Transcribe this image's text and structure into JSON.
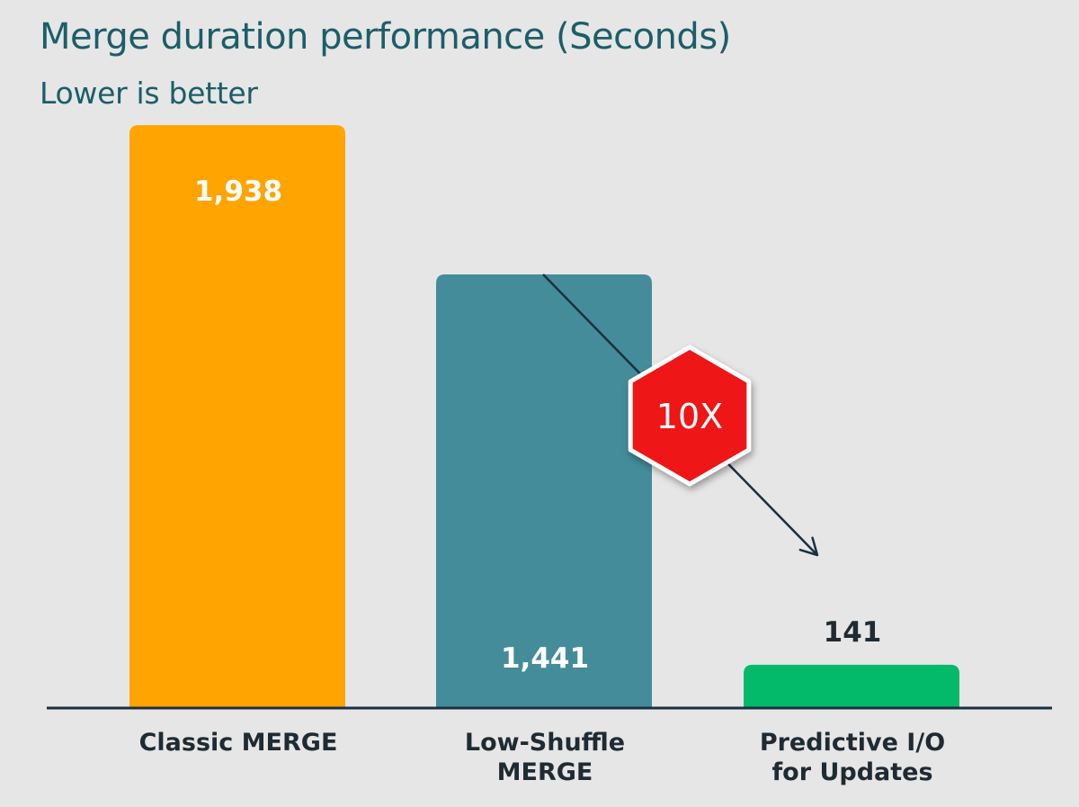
{
  "chart_data": {
    "type": "bar",
    "title": "Merge duration performance (Seconds)",
    "subtitle": "Lower is better",
    "categories": [
      [
        "Classic MERGE"
      ],
      [
        "Low-Shuffle",
        "MERGE"
      ],
      [
        "Predictive I/O",
        "for Updates"
      ]
    ],
    "values": [
      1938,
      1441,
      141
    ],
    "value_labels": [
      "1,938",
      "1,441",
      "141"
    ],
    "colors": [
      "#ffa400",
      "#448c99",
      "#03b96a"
    ],
    "ylim": [
      0,
      2250
    ],
    "xlabel": "",
    "ylabel": "",
    "grid": false,
    "annotation": {
      "text": "10X",
      "color": "#ee1212",
      "from_category": 1,
      "to_category": 2
    }
  }
}
